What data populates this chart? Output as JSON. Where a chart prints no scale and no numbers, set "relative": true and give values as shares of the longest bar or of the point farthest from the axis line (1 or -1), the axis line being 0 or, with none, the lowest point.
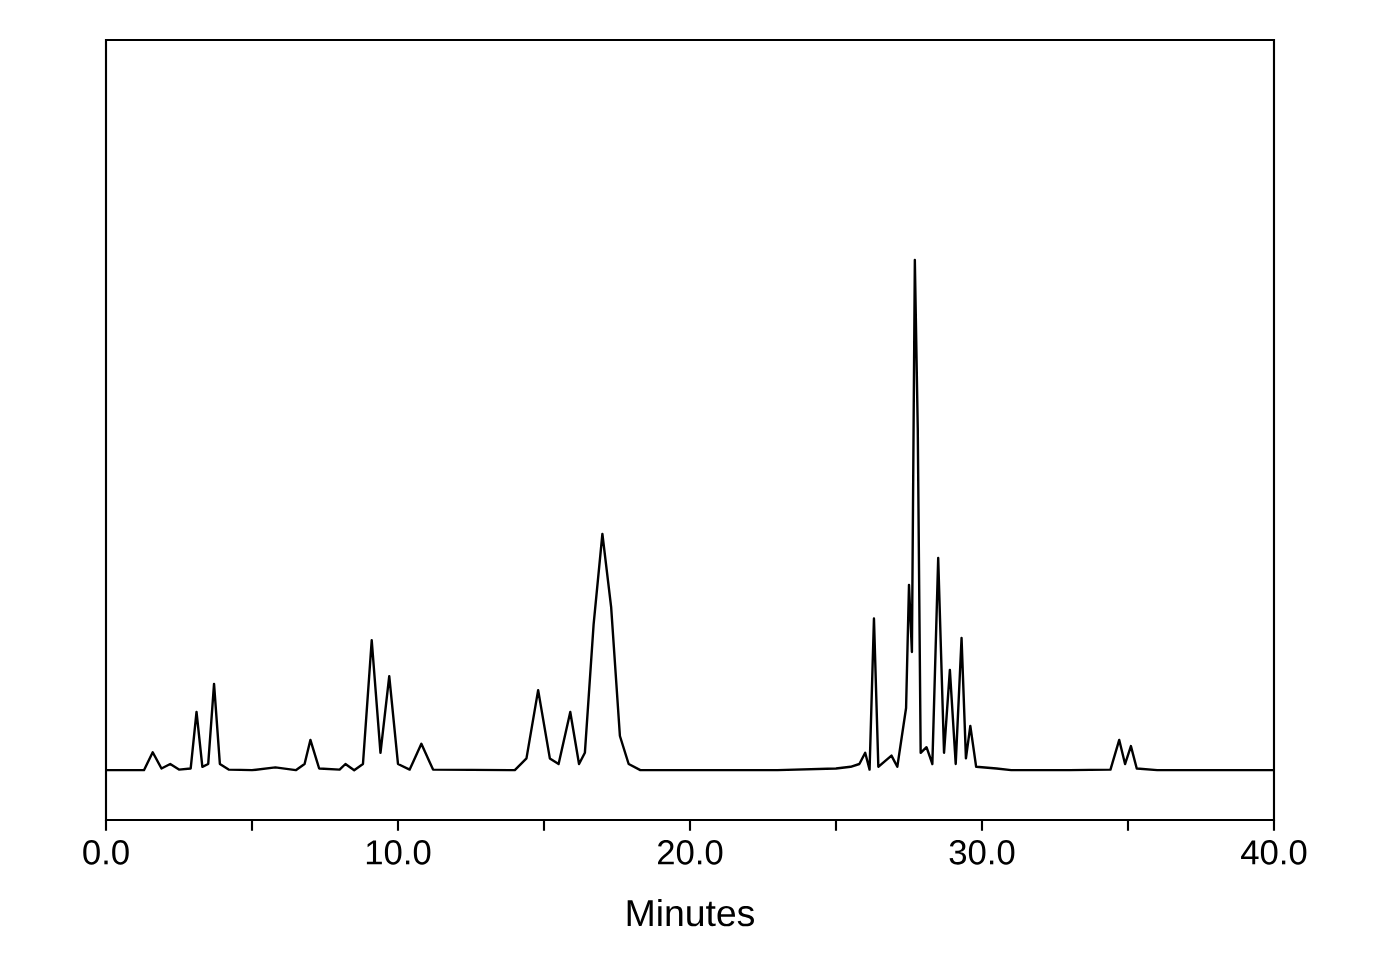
{
  "chart_data": {
    "type": "line",
    "relative": true,
    "xlabel": "Minutes",
    "xlim": [
      0,
      40
    ],
    "xticks": [
      {
        "value": 0,
        "label": "0.0"
      },
      {
        "value": 5,
        "label": null
      },
      {
        "value": 10,
        "label": "10.0"
      },
      {
        "value": 15,
        "label": null
      },
      {
        "value": 20,
        "label": "20.0"
      },
      {
        "value": 25,
        "label": null
      },
      {
        "value": 30,
        "label": "30.0"
      },
      {
        "value": 35,
        "label": null
      },
      {
        "value": 40,
        "label": "40.0"
      }
    ],
    "color": "#000000",
    "x": [
      0.0,
      1.3,
      1.6,
      1.9,
      2.2,
      2.5,
      2.9,
      3.1,
      3.3,
      3.5,
      3.7,
      3.9,
      4.2,
      5.0,
      5.8,
      6.5,
      6.8,
      7.0,
      7.3,
      8.0,
      8.2,
      8.5,
      8.8,
      9.1,
      9.4,
      9.7,
      10.0,
      10.4,
      10.8,
      11.2,
      14.0,
      14.4,
      14.8,
      15.2,
      15.5,
      15.9,
      16.2,
      16.4,
      16.7,
      17.0,
      17.3,
      17.6,
      17.9,
      18.3,
      23.0,
      25.0,
      25.5,
      25.8,
      26.0,
      26.15,
      26.3,
      26.45,
      26.9,
      27.1,
      27.4,
      27.5,
      27.6,
      27.7,
      27.8,
      27.9,
      28.1,
      28.3,
      28.5,
      28.7,
      28.9,
      29.1,
      29.3,
      29.45,
      29.6,
      29.8,
      30.5,
      31.0,
      33.0,
      34.4,
      34.7,
      34.9,
      35.1,
      35.3,
      36.0,
      40.0
    ],
    "values": [
      0.089,
      0.089,
      0.121,
      0.092,
      0.1,
      0.09,
      0.092,
      0.193,
      0.095,
      0.1,
      0.243,
      0.1,
      0.09,
      0.089,
      0.094,
      0.089,
      0.1,
      0.143,
      0.092,
      0.09,
      0.1,
      0.089,
      0.1,
      0.321,
      0.12,
      0.257,
      0.1,
      0.09,
      0.136,
      0.09,
      0.089,
      0.11,
      0.232,
      0.11,
      0.1,
      0.193,
      0.1,
      0.12,
      0.35,
      0.511,
      0.38,
      0.15,
      0.1,
      0.089,
      0.089,
      0.092,
      0.095,
      0.1,
      0.12,
      0.09,
      0.36,
      0.095,
      0.115,
      0.095,
      0.2,
      0.42,
      0.3,
      1.0,
      0.7,
      0.12,
      0.13,
      0.1,
      0.468,
      0.12,
      0.268,
      0.1,
      0.325,
      0.11,
      0.168,
      0.095,
      0.092,
      0.089,
      0.089,
      0.09,
      0.143,
      0.1,
      0.132,
      0.092,
      0.089,
      0.089
    ]
  }
}
